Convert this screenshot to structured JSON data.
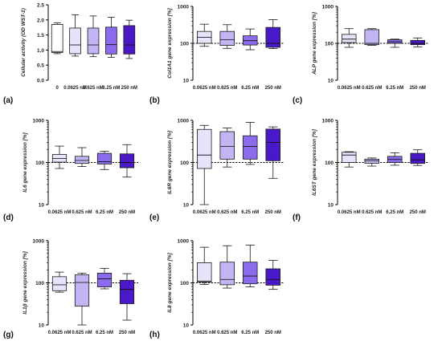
{
  "colors": {
    "box_fills": [
      "#ffffff",
      "#e8e3fb",
      "#c3b4f4",
      "#8c6cee",
      "#4a19c7"
    ],
    "box_stroke": "#1a1a1a",
    "reference_line": "#000000"
  },
  "chart_data": [
    {
      "type": "box",
      "panel": "(a)",
      "ylabel": "Cellular activity (OD WST-1)",
      "yscale": "linear",
      "ylim": [
        0.0,
        2.5
      ],
      "yticks": [
        "0.0",
        "0.5",
        "1.0",
        "1.5",
        "2.0",
        "2.5"
      ],
      "categories": [
        "0",
        "0.0625 nM",
        "0.625 nM",
        "6.25 nM",
        "250 nM"
      ],
      "boxes": [
        {
          "min": 0.88,
          "q1": 0.92,
          "median": 0.95,
          "q3": 1.85,
          "max": 1.9
        },
        {
          "min": 0.8,
          "q1": 0.88,
          "median": 1.17,
          "q3": 1.73,
          "max": 2.17
        },
        {
          "min": 0.78,
          "q1": 0.88,
          "median": 1.17,
          "q3": 1.73,
          "max": 2.13
        },
        {
          "min": 0.76,
          "q1": 0.87,
          "median": 1.18,
          "q3": 1.76,
          "max": 2.09
        },
        {
          "min": 0.72,
          "q1": 0.87,
          "median": 1.17,
          "q3": 1.81,
          "max": 1.99
        }
      ]
    },
    {
      "type": "box",
      "panel": "(b)",
      "ylabel": "Col1A1 gene expression [%]",
      "yscale": "log",
      "ylim": [
        10,
        1000
      ],
      "yticks": [
        "10",
        "100",
        "1000"
      ],
      "reference": 100,
      "categories": [
        "0.0625 nM",
        "0.625 nM",
        "6.25 nM",
        "250 nM"
      ],
      "boxes": [
        {
          "min": 83,
          "q1": 100,
          "median": 145,
          "q3": 210,
          "max": 330
        },
        {
          "min": 73,
          "q1": 88,
          "median": 125,
          "q3": 210,
          "max": 320
        },
        {
          "min": 67,
          "q1": 90,
          "median": 118,
          "q3": 160,
          "max": 245
        },
        {
          "min": 72,
          "q1": 78,
          "median": 100,
          "q3": 270,
          "max": 440
        }
      ]
    },
    {
      "type": "box",
      "panel": "(c)",
      "ylabel": "ALP gene expression [%]",
      "yscale": "log",
      "ylim": [
        10,
        1000
      ],
      "yticks": [
        "10",
        "100",
        "1000"
      ],
      "reference": 100,
      "categories": [
        "0.0625 nM",
        "0.625 nM",
        "6.25 nM",
        "250 nM"
      ],
      "boxes": [
        {
          "min": 78,
          "q1": 105,
          "median": 130,
          "q3": 175,
          "max": 250
        },
        {
          "min": 88,
          "q1": 92,
          "median": 100,
          "q3": 235,
          "max": 250
        },
        {
          "min": 78,
          "q1": 100,
          "median": 110,
          "q3": 125,
          "max": 130
        },
        {
          "min": 80,
          "q1": 92,
          "median": 100,
          "q3": 120,
          "max": 140
        }
      ]
    },
    {
      "type": "box",
      "panel": "(d)",
      "ylabel": "IL6 gene expression [%]",
      "yscale": "log",
      "ylim": [
        10,
        1000
      ],
      "yticks": [
        "10",
        "100",
        "1000"
      ],
      "reference": 100,
      "categories": [
        "0.0625 nM",
        "0.625 nM",
        "6.25 nM",
        "250 nM"
      ],
      "boxes": [
        {
          "min": 72,
          "q1": 102,
          "median": 125,
          "q3": 155,
          "max": 245
        },
        {
          "min": 80,
          "q1": 95,
          "median": 112,
          "q3": 140,
          "max": 225
        },
        {
          "min": 68,
          "q1": 92,
          "median": 105,
          "q3": 165,
          "max": 185
        },
        {
          "min": 45,
          "q1": 75,
          "median": 100,
          "q3": 160,
          "max": 265
        }
      ]
    },
    {
      "type": "box",
      "panel": "(e)",
      "ylabel": "IL6R gene expression [%]",
      "yscale": "log",
      "ylim": [
        10,
        1000
      ],
      "yticks": [
        "10",
        "100",
        "1000"
      ],
      "reference": 100,
      "categories": [
        "0.0625 nM",
        "0.625 nM",
        "6.25 nM",
        "250 nM"
      ],
      "boxes": [
        {
          "min": 10,
          "q1": 72,
          "median": 150,
          "q3": 610,
          "max": 760
        },
        {
          "min": 78,
          "q1": 120,
          "median": 240,
          "q3": 540,
          "max": 660
        },
        {
          "min": 90,
          "q1": 120,
          "median": 240,
          "q3": 430,
          "max": 900
        },
        {
          "min": 42,
          "q1": 110,
          "median": 300,
          "q3": 620,
          "max": 700
        }
      ]
    },
    {
      "type": "box",
      "panel": "(f)",
      "ylabel": "IL6ST gene expression [%]",
      "yscale": "log",
      "ylim": [
        10,
        1000
      ],
      "yticks": [
        "10",
        "100",
        "1000"
      ],
      "reference": 100,
      "categories": [
        "0.0625 nM",
        "0.625 nM",
        "6.25 nM",
        "250 nM"
      ],
      "boxes": [
        {
          "min": 78,
          "q1": 100,
          "median": 150,
          "q3": 175,
          "max": 180
        },
        {
          "min": 82,
          "q1": 96,
          "median": 110,
          "q3": 120,
          "max": 128
        },
        {
          "min": 86,
          "q1": 100,
          "median": 118,
          "q3": 140,
          "max": 170
        },
        {
          "min": 85,
          "q1": 95,
          "median": 115,
          "q3": 165,
          "max": 200
        }
      ]
    },
    {
      "type": "box",
      "panel": "(g)",
      "ylabel": "IL1β gene expression [%]",
      "yscale": "log",
      "ylim": [
        10,
        1000
      ],
      "yticks": [
        "10",
        "100",
        "1000"
      ],
      "reference": 100,
      "categories": [
        "0.0625 nM",
        "0.625 nM",
        "6.25 nM",
        "250 nM"
      ],
      "boxes": [
        {
          "min": 60,
          "q1": 65,
          "median": 90,
          "q3": 140,
          "max": 180
        },
        {
          "min": 10,
          "q1": 28,
          "median": 102,
          "q3": 155,
          "max": 170
        },
        {
          "min": 72,
          "q1": 80,
          "median": 125,
          "q3": 170,
          "max": 220
        },
        {
          "min": 13,
          "q1": 32,
          "median": 70,
          "q3": 115,
          "max": 165
        }
      ]
    },
    {
      "type": "box",
      "panel": "(h)",
      "ylabel": "IL8 gene expression [%]",
      "yscale": "log",
      "ylim": [
        10,
        1000
      ],
      "yticks": [
        "10",
        "100",
        "1000"
      ],
      "reference": 100,
      "categories": [
        "0.0625 nM",
        "0.625 nM",
        "6.25 nM",
        "250 nM"
      ],
      "boxes": [
        {
          "min": 92,
          "q1": 105,
          "median": 110,
          "q3": 300,
          "max": 700
        },
        {
          "min": 75,
          "q1": 90,
          "median": 120,
          "q3": 310,
          "max": 760
        },
        {
          "min": 80,
          "q1": 95,
          "median": 145,
          "q3": 310,
          "max": 790
        },
        {
          "min": 70,
          "q1": 88,
          "median": 120,
          "q3": 215,
          "max": 340
        }
      ]
    }
  ]
}
